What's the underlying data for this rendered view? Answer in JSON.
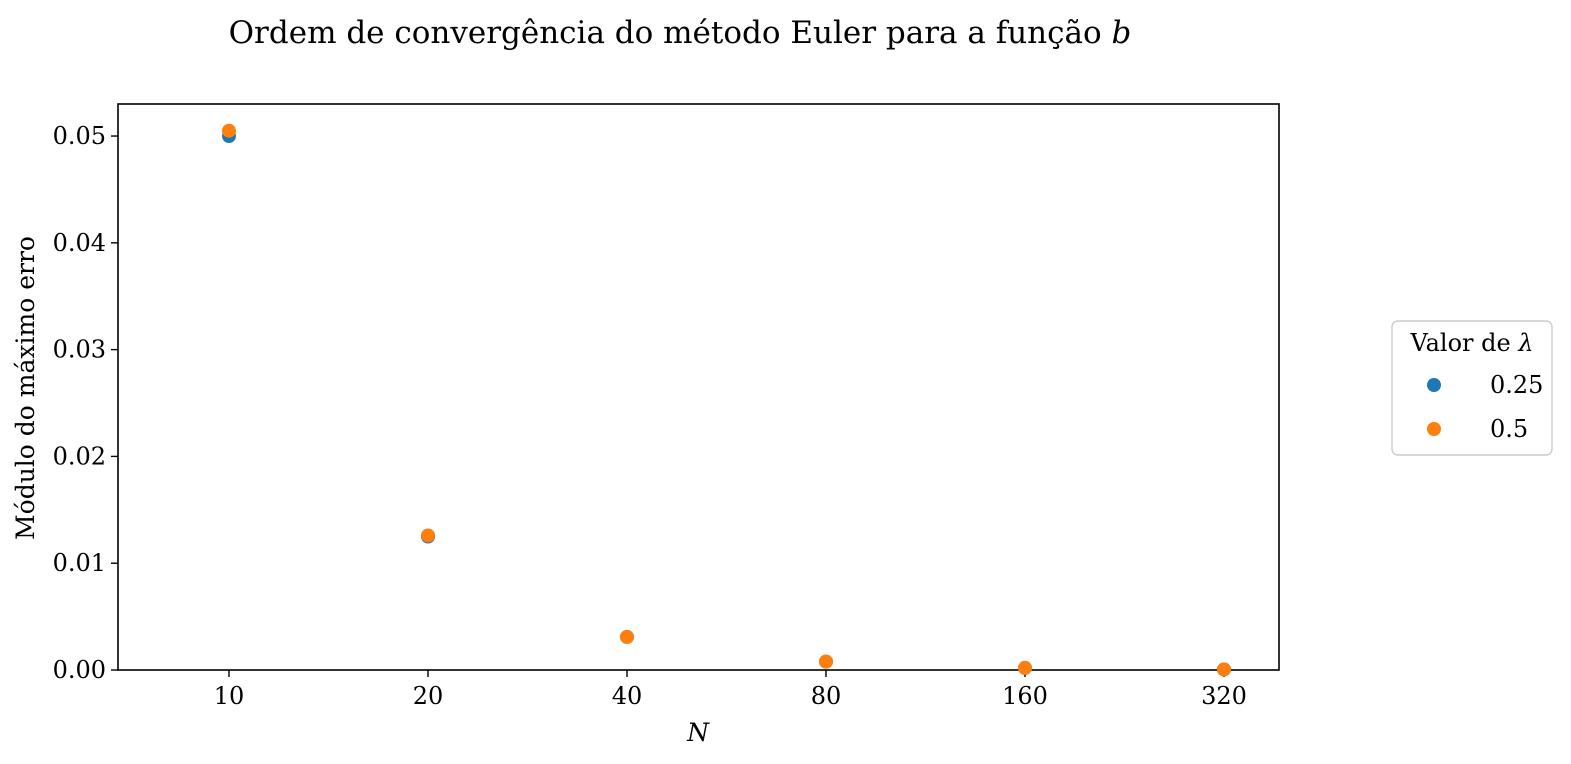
{
  "chart_data": {
    "type": "scatter",
    "title": "Ordem de convergência do método Euler para a função",
    "title_var": "b",
    "xlabel": "N",
    "ylabel": "Módulo do máximo erro",
    "x_scale": "categorical",
    "categories": [
      "10",
      "20",
      "40",
      "80",
      "160",
      "320"
    ],
    "ylim": [
      0.0,
      0.053
    ],
    "yticks": [
      0.0,
      0.01,
      0.02,
      0.03,
      0.04,
      0.05
    ],
    "ytick_labels": [
      "0.00",
      "0.01",
      "0.02",
      "0.03",
      "0.04",
      "0.05"
    ],
    "grid": false,
    "legend": {
      "title": "Valor de",
      "title_symbol": "λ",
      "placement": "outside-right",
      "entries": [
        "0.25",
        "0.5"
      ]
    },
    "series": [
      {
        "name": "0.25",
        "color": "#1f77b4",
        "values": [
          0.05,
          0.0125,
          0.0031,
          0.00078,
          0.000195,
          4.9e-05
        ]
      },
      {
        "name": "0.5",
        "color": "#ff7f0e",
        "values": [
          0.0505,
          0.0126,
          0.0031,
          0.00079,
          0.000197,
          5e-05
        ]
      }
    ]
  }
}
